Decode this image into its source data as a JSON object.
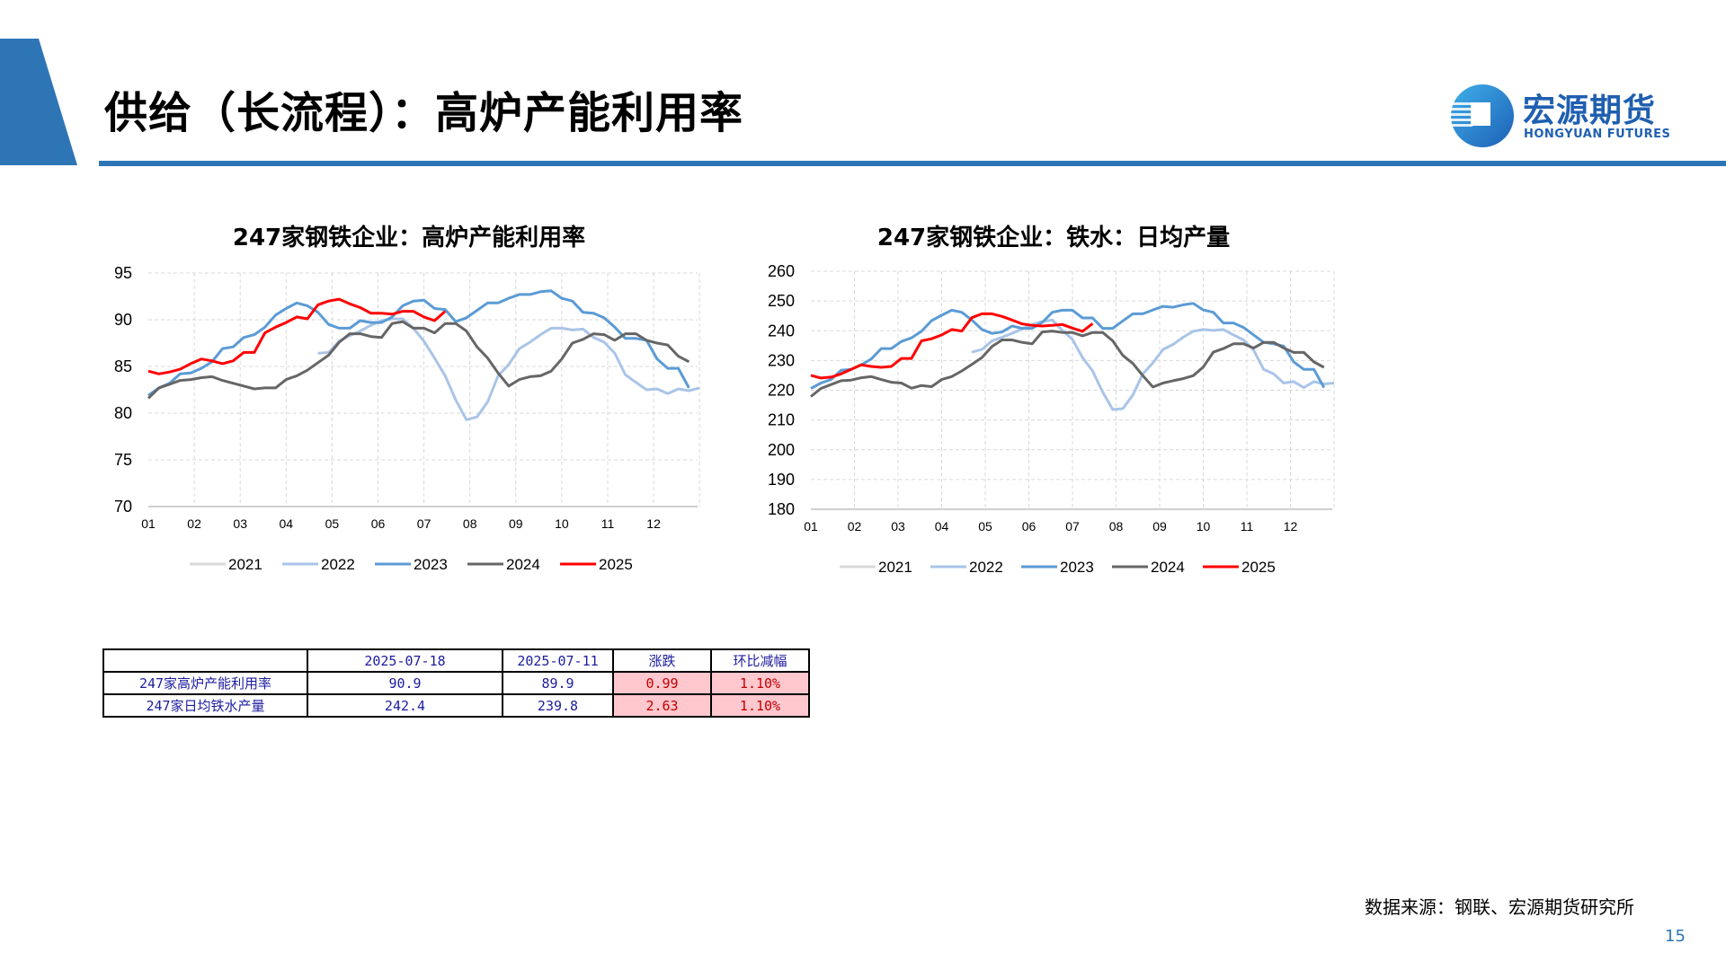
{
  "header": {
    "title": "供给（长流程）：高炉产能利用率",
    "accent_color": "#2e75b6"
  },
  "logo": {
    "name_cn": "宏源期货",
    "name_en": "HONGYUAN FUTURES"
  },
  "chart_data": [
    {
      "type": "line",
      "title": "247家钢铁企业：高炉产能利用率",
      "x_unit": "week index; month position = 1 + week*12/52",
      "x_tick_labels": [
        "01",
        "02",
        "03",
        "04",
        "05",
        "06",
        "07",
        "08",
        "09",
        "10",
        "11",
        "12"
      ],
      "y_ticks": [
        70,
        75,
        80,
        85,
        90,
        95
      ],
      "ylim": [
        70,
        95
      ],
      "grid": true,
      "legend": "bottom",
      "series": [
        {
          "name": "2021",
          "color": "#d9d9d9",
          "start_week": 0,
          "values": []
        },
        {
          "name": "2022",
          "color": "#a9c4e8",
          "start_week": 16,
          "values": [
            86.4,
            86.5,
            87.7,
            88.3,
            88.8,
            89.4,
            89.9,
            90.1,
            90.1,
            89.1,
            87.7,
            85.9,
            84.0,
            81.4,
            79.3,
            79.6,
            81.2,
            84.0,
            85.2,
            86.9,
            87.6,
            88.4,
            89.1,
            89.1,
            88.9,
            89.0,
            88.1,
            87.6,
            86.4,
            84.1,
            83.3,
            82.5,
            82.6,
            82.1,
            82.6,
            82.4,
            82.7
          ]
        },
        {
          "name": "2023",
          "color": "#5b9bd5",
          "start_week": 0,
          "values": [
            81.9,
            82.7,
            83.2,
            84.2,
            84.3,
            84.8,
            85.5,
            86.9,
            87.1,
            88.1,
            88.4,
            89.2,
            90.5,
            91.2,
            91.8,
            91.5,
            90.8,
            89.5,
            89.1,
            89.1,
            89.9,
            89.7,
            89.7,
            90.3,
            91.5,
            92.0,
            92.1,
            91.2,
            91.1,
            89.8,
            90.2,
            91.0,
            91.8,
            91.8,
            92.3,
            92.7,
            92.7,
            93.0,
            93.1,
            92.3,
            92.0,
            90.8,
            90.7,
            90.2,
            89.2,
            88.0,
            88.0,
            87.8,
            85.8,
            84.8,
            84.8,
            82.7
          ]
        },
        {
          "name": "2024",
          "color": "#666666",
          "start_week": 0,
          "values": [
            81.6,
            82.7,
            83.1,
            83.5,
            83.6,
            83.8,
            83.9,
            83.5,
            83.2,
            82.9,
            82.6,
            82.7,
            82.7,
            83.6,
            84.0,
            84.6,
            85.4,
            86.2,
            87.6,
            88.5,
            88.5,
            88.2,
            88.1,
            89.6,
            89.8,
            89.1,
            89.1,
            88.6,
            89.6,
            89.6,
            88.8,
            87.1,
            85.9,
            84.3,
            82.9,
            83.6,
            83.9,
            84.0,
            84.5,
            85.8,
            87.5,
            87.9,
            88.5,
            88.4,
            87.8,
            88.5,
            88.5,
            87.8,
            87.5,
            87.3,
            86.1,
            85.5
          ]
        },
        {
          "name": "2025",
          "color": "#ff0000",
          "start_week": 0,
          "values": [
            84.5,
            84.2,
            84.4,
            84.7,
            85.3,
            85.8,
            85.6,
            85.3,
            85.6,
            86.5,
            86.5,
            88.6,
            89.2,
            89.7,
            90.3,
            90.1,
            91.6,
            92.0,
            92.2,
            91.7,
            91.3,
            90.7,
            90.7,
            90.6,
            90.9,
            90.9,
            90.3,
            89.9,
            90.9
          ]
        }
      ]
    },
    {
      "type": "line",
      "title": "247家钢铁企业：铁水：日均产量",
      "x_unit": "week index; month position = 1 + week*12/52",
      "x_tick_labels": [
        "01",
        "02",
        "03",
        "04",
        "05",
        "06",
        "07",
        "08",
        "09",
        "10",
        "11",
        "12"
      ],
      "y_ticks": [
        180,
        190,
        200,
        210,
        220,
        230,
        240,
        250,
        260
      ],
      "ylim": [
        180,
        260
      ],
      "grid": true,
      "legend": "bottom",
      "series": [
        {
          "name": "2021",
          "color": "#d9d9d9",
          "start_week": 0,
          "values": []
        },
        {
          "name": "2022",
          "color": "#a9c4e8",
          "start_week": 16,
          "values": [
            232.8,
            233.7,
            236.6,
            237.8,
            239.1,
            240.6,
            242.1,
            243.1,
            243.6,
            240.1,
            237.1,
            231.0,
            226.5,
            219.4,
            213.5,
            213.8,
            218.4,
            225.5,
            229.2,
            233.7,
            235.4,
            237.8,
            239.8,
            240.4,
            240.1,
            240.4,
            238.6,
            236.9,
            233.5,
            227.0,
            225.5,
            222.4,
            222.9,
            220.9,
            222.9,
            222.1,
            222.4
          ]
        },
        {
          "name": "2023",
          "color": "#5b9bd5",
          "start_week": 0,
          "values": [
            220.6,
            222.4,
            223.6,
            226.7,
            227.0,
            228.5,
            230.5,
            234.0,
            234.0,
            236.4,
            237.6,
            239.8,
            243.4,
            245.2,
            246.9,
            246.2,
            243.6,
            240.4,
            239.1,
            239.6,
            241.6,
            240.8,
            240.8,
            242.8,
            246.2,
            246.9,
            246.9,
            244.3,
            244.3,
            240.8,
            240.8,
            243.3,
            245.7,
            245.7,
            247.0,
            248.2,
            247.9,
            248.7,
            249.2,
            247.0,
            246.2,
            242.6,
            242.6,
            241.1,
            238.6,
            236.1,
            235.6,
            234.8,
            229.5,
            227.0,
            227.0,
            220.9
          ]
        },
        {
          "name": "2024",
          "color": "#666666",
          "start_week": 0,
          "values": [
            217.9,
            220.6,
            221.9,
            223.2,
            223.4,
            224.2,
            224.6,
            223.6,
            222.7,
            222.4,
            220.7,
            221.6,
            221.2,
            223.6,
            224.6,
            226.5,
            228.7,
            231.0,
            234.7,
            236.9,
            236.9,
            236.1,
            235.6,
            239.6,
            239.9,
            239.4,
            239.4,
            238.3,
            239.4,
            239.4,
            236.6,
            231.7,
            229.0,
            224.9,
            221.1,
            222.4,
            223.2,
            223.9,
            224.9,
            227.8,
            232.8,
            234.0,
            235.6,
            235.6,
            234.2,
            236.1,
            236.1,
            234.2,
            232.7,
            232.7,
            229.5,
            227.7
          ]
        },
        {
          "name": "2025",
          "color": "#ff0000",
          "start_week": 0,
          "values": [
            225.0,
            224.1,
            224.4,
            225.5,
            227.0,
            228.5,
            228.0,
            227.7,
            228.0,
            230.7,
            230.7,
            236.6,
            237.3,
            238.6,
            240.4,
            239.9,
            244.4,
            245.7,
            245.7,
            244.8,
            243.6,
            242.3,
            241.8,
            241.6,
            241.8,
            242.1,
            240.9,
            239.8,
            242.4
          ]
        }
      ]
    }
  ],
  "table": {
    "headers": [
      "",
      "2025-07-18",
      "2025-07-11",
      "涨跌",
      "环比减幅"
    ],
    "rows": [
      [
        "247家高炉产能利用率",
        "90.9",
        "89.9",
        "0.99",
        "1.10%"
      ],
      [
        "247家日均铁水产量",
        "242.4",
        "239.8",
        "2.63",
        "1.10%"
      ]
    ],
    "highlight_color": "#ffc7ce"
  },
  "footer": {
    "source": "数据来源：钢联、宏源期货研究所",
    "page_number": "15"
  }
}
